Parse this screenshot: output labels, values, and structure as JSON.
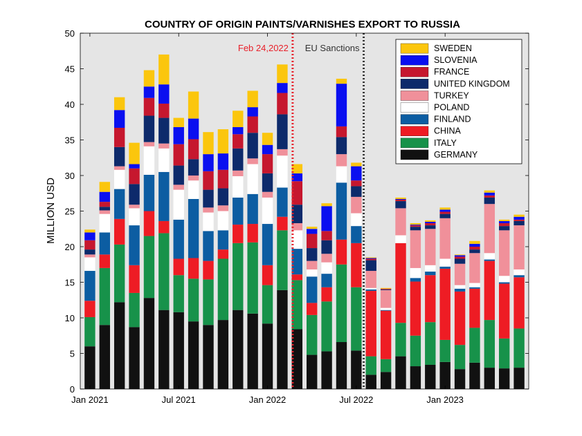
{
  "chart_data": {
    "type": "bar",
    "stacked": true,
    "title": "COUNTRY OF ORIGIN PAINTS/VARNISHES EXPORT TO RUSSIA",
    "xlabel": "",
    "ylabel": "MILLION USD",
    "ylim": [
      0,
      50
    ],
    "yticks": [
      0,
      5,
      10,
      15,
      20,
      25,
      30,
      35,
      40,
      45,
      50
    ],
    "xtick_labels": [
      {
        "index": 0,
        "label": "Jan 2021"
      },
      {
        "index": 6,
        "label": "Jul 2021"
      },
      {
        "index": 12,
        "label": "Jan 2022"
      },
      {
        "index": 18,
        "label": "Jul 2022"
      },
      {
        "index": 24,
        "label": "Jan 2023"
      }
    ],
    "grid": false,
    "background": "#e5e5e5",
    "legend_position": "top-right",
    "categories": [
      "2021-01",
      "2021-02",
      "2021-03",
      "2021-04",
      "2021-05",
      "2021-06",
      "2021-07",
      "2021-08",
      "2021-09",
      "2021-10",
      "2021-11",
      "2021-12",
      "2022-01",
      "2022-02",
      "2022-03",
      "2022-04",
      "2022-05",
      "2022-06",
      "2022-07",
      "2022-08",
      "2022-09",
      "2022-10",
      "2022-11",
      "2022-12",
      "2023-01",
      "2023-02",
      "2023-03",
      "2023-04",
      "2023-05",
      "2023-06"
    ],
    "annotations": [
      {
        "label": "Feb 24,2022",
        "at_index": 13.7,
        "color": "#e8202a",
        "style": "dotted"
      },
      {
        "label": "EU Sanctions",
        "at_index": 18.5,
        "color": "#333333",
        "style": "dotted"
      }
    ],
    "series": [
      {
        "name": "GERMANY",
        "color": "#111111",
        "values": [
          6.0,
          9.0,
          12.2,
          8.7,
          12.8,
          11.1,
          10.8,
          9.5,
          9.0,
          9.7,
          11.1,
          10.6,
          9.2,
          13.9,
          8.4,
          4.8,
          5.3,
          6.6,
          5.4,
          2.0,
          2.4,
          4.6,
          3.2,
          3.4,
          3.8,
          2.8,
          3.7,
          3.0,
          2.9,
          3.0
        ]
      },
      {
        "name": "ITALY",
        "color": "#17924a",
        "values": [
          4.1,
          8.0,
          8.1,
          4.8,
          8.7,
          10.8,
          5.2,
          6.0,
          6.4,
          8.6,
          9.4,
          10.0,
          5.4,
          8.4,
          6.9,
          5.6,
          7.0,
          10.9,
          8.9,
          2.6,
          1.8,
          4.7,
          4.3,
          6.0,
          3.1,
          3.4,
          4.9,
          6.7,
          4.2,
          5.5
        ]
      },
      {
        "name": "CHINA",
        "color": "#ee1c24",
        "values": [
          2.3,
          1.9,
          3.6,
          3.9,
          3.5,
          1.7,
          2.3,
          2.9,
          2.6,
          1.3,
          2.6,
          2.6,
          2.8,
          1.9,
          0.8,
          1.7,
          2.0,
          3.5,
          6.2,
          9.2,
          6.8,
          11.2,
          7.6,
          6.6,
          10.0,
          7.5,
          5.5,
          8.3,
          7.7,
          7.2
        ]
      },
      {
        "name": "FINLAND",
        "color": "#0c5da2",
        "values": [
          4.2,
          3.1,
          4.2,
          5.6,
          5.1,
          6.9,
          5.5,
          8.3,
          4.2,
          2.7,
          3.8,
          4.2,
          5.8,
          4.1,
          3.6,
          3.7,
          1.9,
          8.0,
          2.4,
          0.2,
          0.1,
          0.0,
          0.5,
          0.5,
          0.3,
          0.4,
          0.2,
          0.2,
          0.2,
          0.3
        ]
      },
      {
        "name": "POLAND",
        "color": "#ffffff",
        "values": [
          1.9,
          2.6,
          2.7,
          2.4,
          4.0,
          3.3,
          4.2,
          2.6,
          2.6,
          2.7,
          3.0,
          4.2,
          3.7,
          4.5,
          2.6,
          1.0,
          1.6,
          2.3,
          1.8,
          0.2,
          0.3,
          1.1,
          1.4,
          0.9,
          1.1,
          0.5,
          0.6,
          0.9,
          0.9,
          0.8
        ]
      },
      {
        "name": "TURKEY",
        "color": "#f0909a",
        "values": [
          0.4,
          0.5,
          0.5,
          0.5,
          0.6,
          0.7,
          0.7,
          0.7,
          0.7,
          0.8,
          0.8,
          0.8,
          0.8,
          0.9,
          1.0,
          1.2,
          1.2,
          1.7,
          2.3,
          2.4,
          2.5,
          3.8,
          5.3,
          5.1,
          5.7,
          3.0,
          4.2,
          6.9,
          6.4,
          6.2
        ]
      },
      {
        "name": "UNITED KINGDOM",
        "color": "#0d2a6b",
        "values": [
          0.7,
          0.5,
          2.7,
          2.9,
          3.7,
          3.6,
          2.7,
          2.3,
          2.5,
          2.4,
          3.1,
          3.6,
          2.6,
          4.9,
          2.6,
          1.8,
          1.9,
          2.4,
          1.5,
          1.5,
          0.1,
          1.0,
          0.5,
          0.5,
          0.6,
          0.7,
          0.5,
          0.9,
          0.6,
          0.6
        ]
      },
      {
        "name": "FRANCE",
        "color": "#c6172e",
        "values": [
          1.3,
          0.7,
          2.7,
          2.2,
          2.5,
          2.0,
          3.0,
          2.8,
          2.6,
          2.6,
          2.0,
          2.3,
          2.7,
          3.0,
          3.3,
          2.0,
          1.3,
          1.5,
          0.8,
          0.2,
          0.1,
          0.2,
          0.2,
          0.3,
          0.3,
          0.3,
          0.4,
          0.3,
          0.4,
          0.2
        ]
      },
      {
        "name": "SLOVENIA",
        "color": "#0a0ff0",
        "values": [
          1.1,
          1.4,
          2.5,
          0.6,
          1.6,
          2.7,
          2.4,
          2.9,
          2.4,
          2.3,
          1.0,
          1.3,
          1.3,
          1.4,
          1.1,
          0.7,
          3.5,
          6.0,
          2.0,
          0.1,
          0.0,
          0.1,
          0.1,
          0.2,
          0.3,
          0.2,
          0.4,
          0.4,
          0.3,
          0.4
        ]
      },
      {
        "name": "SWEDEN",
        "color": "#fbc60d",
        "values": [
          0.4,
          1.4,
          1.8,
          3.0,
          2.3,
          4.2,
          1.3,
          3.8,
          3.1,
          3.4,
          2.3,
          2.3,
          1.7,
          2.6,
          1.3,
          0.3,
          0.4,
          0.7,
          0.5,
          0.1,
          0.1,
          0.2,
          0.2,
          0.2,
          0.3,
          0.1,
          0.4,
          0.3,
          0.2,
          0.3
        ]
      }
    ]
  }
}
